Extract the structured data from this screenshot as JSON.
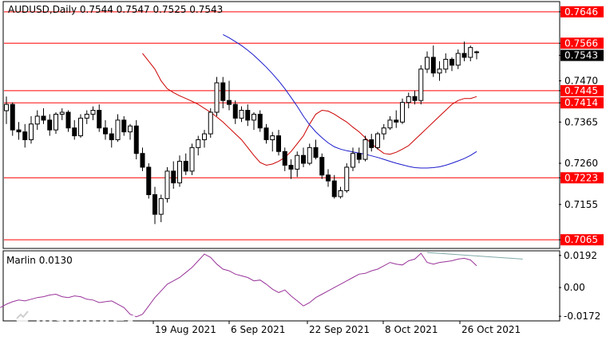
{
  "header": {
    "title": "AUDUSD,Daily  0.7544 0.7547 0.7525 0.7543",
    "symbol": "AUDUSD",
    "timeframe": "Daily",
    "ohlc": [
      0.7544,
      0.7547,
      0.7525,
      0.7543
    ]
  },
  "indicator": {
    "label": "Marlin 0.0130",
    "name": "Marlin",
    "value": 0.013,
    "scale_labels": [
      "0.0192",
      "0.00",
      "-0.0172"
    ]
  },
  "price_axis": {
    "labels": [
      "0.7646",
      "0.7566",
      "0.7543",
      "0.7470",
      "0.7445",
      "0.7414",
      "0.7365",
      "0.7260",
      "0.7223",
      "0.7155",
      "0.7065"
    ]
  },
  "date_axis": {
    "labels": [
      "19 Aug 2021",
      "6 Sep 2021",
      "22 Sep 2021",
      "8 Oct 2021",
      "26 Oct 2021"
    ]
  },
  "watermark": {
    "brand": "instaforex",
    "tagline": "Instant Forex Trading"
  },
  "colors": {
    "level_line": "#ff0000",
    "ma_fast": "#cc0000",
    "ma_slow": "#1a1acc",
    "oscillator": "#993399",
    "divergence": "#7fa8a8",
    "bull": "#ffffff",
    "bear": "#000000"
  },
  "chart_data": [
    {
      "type": "candlestick",
      "title": "AUDUSD,Daily  0.7544 0.7547 0.7525 0.7543",
      "ylim": [
        0.7045,
        0.767
      ],
      "horizontal_levels": [
        0.7646,
        0.7566,
        0.7445,
        0.7414,
        0.7223,
        0.7065
      ],
      "current_price": 0.7543,
      "yticks": [
        0.747,
        0.7365,
        0.726,
        0.7155
      ],
      "candles": [
        [
          0.7394,
          0.743,
          0.736,
          0.741
        ],
        [
          0.741,
          0.7415,
          0.733,
          0.7345
        ],
        [
          0.7345,
          0.7365,
          0.732,
          0.734
        ],
        [
          0.734,
          0.736,
          0.73,
          0.732
        ],
        [
          0.732,
          0.738,
          0.731,
          0.736
        ],
        [
          0.736,
          0.7395,
          0.7345,
          0.738
        ],
        [
          0.738,
          0.74,
          0.736,
          0.737
        ],
        [
          0.737,
          0.7385,
          0.733,
          0.7345
        ],
        [
          0.7345,
          0.739,
          0.7335,
          0.7385
        ],
        [
          0.7385,
          0.74,
          0.737,
          0.739
        ],
        [
          0.739,
          0.7395,
          0.734,
          0.735
        ],
        [
          0.735,
          0.737,
          0.732,
          0.733
        ],
        [
          0.733,
          0.7385,
          0.7325,
          0.7375
        ],
        [
          0.7375,
          0.7395,
          0.736,
          0.7385
        ],
        [
          0.7385,
          0.7405,
          0.737,
          0.7395
        ],
        [
          0.7395,
          0.741,
          0.734,
          0.735
        ],
        [
          0.735,
          0.737,
          0.732,
          0.7335
        ],
        [
          0.7335,
          0.735,
          0.73,
          0.732
        ],
        [
          0.732,
          0.7385,
          0.7315,
          0.737
        ],
        [
          0.737,
          0.738,
          0.733,
          0.734
        ],
        [
          0.734,
          0.736,
          0.732,
          0.7355
        ],
        [
          0.7355,
          0.737,
          0.727,
          0.7285
        ],
        [
          0.7285,
          0.73,
          0.724,
          0.725
        ],
        [
          0.725,
          0.726,
          0.717,
          0.718
        ],
        [
          0.718,
          0.72,
          0.7105,
          0.713
        ],
        [
          0.713,
          0.718,
          0.711,
          0.717
        ],
        [
          0.717,
          0.725,
          0.716,
          0.724
        ],
        [
          0.724,
          0.7265,
          0.7195,
          0.721
        ],
        [
          0.721,
          0.728,
          0.72,
          0.7265
        ],
        [
          0.7265,
          0.7285,
          0.723,
          0.724
        ],
        [
          0.724,
          0.731,
          0.723,
          0.73
        ],
        [
          0.73,
          0.733,
          0.728,
          0.732
        ],
        [
          0.732,
          0.7345,
          0.73,
          0.7335
        ],
        [
          0.7335,
          0.74,
          0.7325,
          0.739
        ],
        [
          0.739,
          0.748,
          0.738,
          0.7465
        ],
        [
          0.7465,
          0.748,
          0.74,
          0.742
        ],
        [
          0.742,
          0.747,
          0.7395,
          0.741
        ],
        [
          0.741,
          0.742,
          0.736,
          0.7375
        ],
        [
          0.7375,
          0.7405,
          0.7365,
          0.7395
        ],
        [
          0.7395,
          0.741,
          0.7355,
          0.737
        ],
        [
          0.737,
          0.739,
          0.7345,
          0.7385
        ],
        [
          0.7385,
          0.7395,
          0.734,
          0.735
        ],
        [
          0.735,
          0.736,
          0.731,
          0.732
        ],
        [
          0.732,
          0.734,
          0.729,
          0.733
        ],
        [
          0.733,
          0.7345,
          0.728,
          0.729
        ],
        [
          0.729,
          0.73,
          0.724,
          0.7255
        ],
        [
          0.7255,
          0.727,
          0.722,
          0.7245
        ],
        [
          0.7245,
          0.729,
          0.7225,
          0.728
        ],
        [
          0.728,
          0.73,
          0.725,
          0.726
        ],
        [
          0.726,
          0.731,
          0.7255,
          0.73
        ],
        [
          0.73,
          0.732,
          0.727,
          0.7275
        ],
        [
          0.7275,
          0.7285,
          0.722,
          0.723
        ],
        [
          0.723,
          0.7245,
          0.72,
          0.7215
        ],
        [
          0.7215,
          0.723,
          0.717,
          0.7175
        ],
        [
          0.7175,
          0.72,
          0.717,
          0.719
        ],
        [
          0.719,
          0.726,
          0.7185,
          0.725
        ],
        [
          0.725,
          0.73,
          0.724,
          0.7285
        ],
        [
          0.7285,
          0.73,
          0.726,
          0.727
        ],
        [
          0.727,
          0.733,
          0.7265,
          0.732
        ],
        [
          0.732,
          0.7335,
          0.729,
          0.73
        ],
        [
          0.73,
          0.734,
          0.7295,
          0.7335
        ],
        [
          0.7335,
          0.736,
          0.732,
          0.735
        ],
        [
          0.735,
          0.738,
          0.7345,
          0.737
        ],
        [
          0.737,
          0.7395,
          0.735,
          0.7365
        ],
        [
          0.7365,
          0.7425,
          0.736,
          0.7415
        ],
        [
          0.7415,
          0.744,
          0.74,
          0.743
        ],
        [
          0.743,
          0.7445,
          0.741,
          0.742
        ],
        [
          0.742,
          0.751,
          0.741,
          0.75
        ],
        [
          0.75,
          0.7545,
          0.749,
          0.753
        ],
        [
          0.753,
          0.756,
          0.748,
          0.749
        ],
        [
          0.749,
          0.752,
          0.747,
          0.75
        ],
        [
          0.75,
          0.754,
          0.749,
          0.7525
        ],
        [
          0.7525,
          0.753,
          0.7495,
          0.751
        ],
        [
          0.751,
          0.755,
          0.75,
          0.754
        ],
        [
          0.754,
          0.757,
          0.752,
          0.753
        ],
        [
          0.753,
          0.756,
          0.752,
          0.7555
        ],
        [
          0.7544,
          0.7547,
          0.7525,
          0.7543
        ]
      ],
      "ma_fast": [
        0.754,
        0.752,
        0.75,
        0.747,
        0.745,
        0.744,
        0.7432,
        0.7425,
        0.7418,
        0.741,
        0.74,
        0.739,
        0.7378,
        0.7365,
        0.735,
        0.7335,
        0.732,
        0.73,
        0.728,
        0.7262,
        0.7255,
        0.7258,
        0.7265,
        0.7275,
        0.729,
        0.731,
        0.733,
        0.736,
        0.7385,
        0.7395,
        0.7393,
        0.7385,
        0.7375,
        0.7365,
        0.7352,
        0.734,
        0.7325,
        0.731,
        0.7297,
        0.7285,
        0.7283,
        0.7288,
        0.7296,
        0.7305,
        0.732,
        0.7335,
        0.735,
        0.7365,
        0.738,
        0.7395,
        0.741,
        0.742,
        0.7425,
        0.7425,
        0.743
      ],
      "ma_slow": [
        0.7588,
        0.758,
        0.757,
        0.756,
        0.7548,
        0.7535,
        0.752,
        0.7505,
        0.7488,
        0.747,
        0.745,
        0.7428,
        0.7405,
        0.738,
        0.7358,
        0.734,
        0.7325,
        0.7312,
        0.7302,
        0.7296,
        0.7292,
        0.7289,
        0.7286,
        0.7283,
        0.7279,
        0.7275,
        0.727,
        0.7265,
        0.726,
        0.7256,
        0.7252,
        0.7249,
        0.7248,
        0.7248,
        0.7249,
        0.7251,
        0.7255,
        0.726,
        0.7266,
        0.7272,
        0.728,
        0.729
      ],
      "oscillator": {
        "ylim": [
          -0.0195,
          0.0215
        ],
        "yticks": [
          0.0192,
          0.0,
          -0.0172
        ],
        "values": [
          -0.012,
          -0.01,
          -0.0085,
          -0.0075,
          -0.008,
          -0.007,
          -0.006,
          -0.0055,
          -0.0045,
          -0.004,
          -0.0055,
          -0.006,
          -0.005,
          -0.0055,
          -0.007,
          -0.0075,
          -0.009,
          -0.0085,
          -0.008,
          -0.01,
          -0.012,
          -0.016,
          -0.0175,
          -0.016,
          -0.011,
          -0.006,
          -0.002,
          0.002,
          0.004,
          0.006,
          0.009,
          0.012,
          0.016,
          0.02,
          0.018,
          0.014,
          0.011,
          0.01,
          0.008,
          0.007,
          0.006,
          0.004,
          0.0045,
          0.002,
          -0.001,
          -0.003,
          -0.0015,
          -0.005,
          -0.008,
          -0.011,
          -0.009,
          -0.006,
          -0.004,
          -0.002,
          0.0,
          0.002,
          0.004,
          0.006,
          0.008,
          0.0085,
          0.01,
          0.011,
          0.013,
          0.015,
          0.014,
          0.0135,
          0.016,
          0.017,
          0.0205,
          0.015,
          0.014,
          0.015,
          0.0155,
          0.016,
          0.017,
          0.0175,
          0.0165,
          0.013
        ],
        "divergence_line": [
          [
            68,
            0.0205
          ],
          [
            77,
            0.0175
          ]
        ]
      }
    }
  ]
}
